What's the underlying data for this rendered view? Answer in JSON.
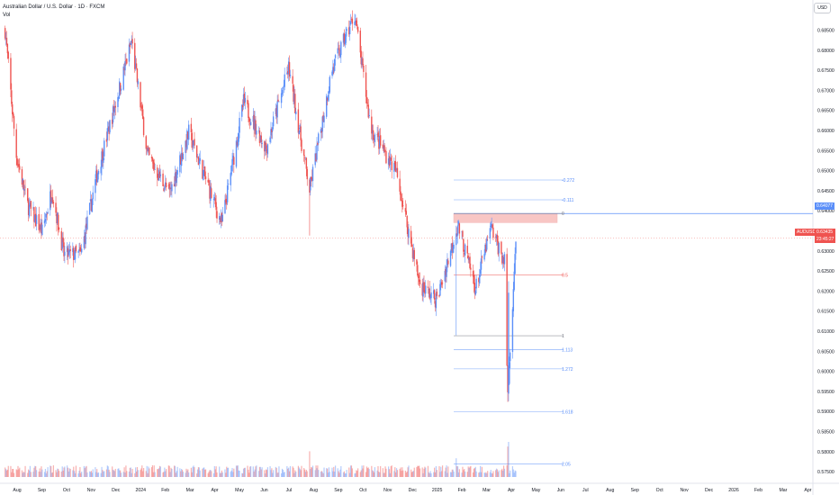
{
  "header": {
    "symbol_title": "Australian Dollar / U.S. Dollar · 1D · FXCM",
    "volume_label": "Vol"
  },
  "currency_button": "USD",
  "price_axis": {
    "ticks": [
      "0.68500",
      "0.68000",
      "0.67500",
      "0.67000",
      "0.66500",
      "0.66000",
      "0.65500",
      "0.65000",
      "0.64500",
      "0.64000",
      "0.63500",
      "0.63000",
      "0.62500",
      "0.62000",
      "0.61500",
      "0.61000",
      "0.60500",
      "0.60000",
      "0.59500",
      "0.59000",
      "0.58500",
      "0.58000",
      "0.57500"
    ]
  },
  "time_axis": {
    "ticks": [
      "Aug",
      "Sep",
      "Oct",
      "Nov",
      "Dec",
      "2024",
      "Feb",
      "Mar",
      "Apr",
      "May",
      "Jun",
      "Jul",
      "Aug",
      "Sep",
      "Oct",
      "Nov",
      "Dec",
      "2025",
      "Feb",
      "Mar",
      "Apr",
      "May",
      "Jun",
      "Jul",
      "Aug",
      "Sep",
      "Oct",
      "Nov",
      "Dec",
      "2026",
      "Feb",
      "Mar",
      "Apr"
    ]
  },
  "price_labels": {
    "level_tag": "0.64077",
    "symbol_tag": "AUDUSD",
    "current_price": "0.63435",
    "countdown": "23:45:27"
  },
  "fib_levels": [
    {
      "label": "-0.272",
      "price": 0.6496,
      "color": "#5b8ff9"
    },
    {
      "label": "-0.111",
      "price": 0.6444,
      "color": "#5b8ff9"
    },
    {
      "label": "0",
      "price": 0.6408,
      "color": "#787b86"
    },
    {
      "label": "0.5",
      "price": 0.6247,
      "color": "#ef5350"
    },
    {
      "label": "1",
      "price": 0.6087,
      "color": "#787b86"
    },
    {
      "label": "1.113",
      "price": 0.605,
      "color": "#5b8ff9"
    },
    {
      "label": "1.272",
      "price": 0.6,
      "color": "#5b8ff9"
    },
    {
      "label": "1.618",
      "price": 0.5888,
      "color": "#5b8ff9"
    },
    {
      "label": "2.05",
      "price": 0.575,
      "color": "#5b8ff9"
    }
  ],
  "chart_data": {
    "type": "candlestick",
    "symbol": "AUDUSD",
    "interval": "1D",
    "ylim": [
      0.5735,
      0.6893
    ],
    "series_close_anchors": [
      [
        "2023-07-24",
        0.689
      ],
      [
        "2023-08-07",
        0.656
      ],
      [
        "2023-08-21",
        0.643
      ],
      [
        "2023-09-08",
        0.636
      ],
      [
        "2023-09-20",
        0.647
      ],
      [
        "2023-10-05",
        0.63
      ],
      [
        "2023-10-26",
        0.63
      ],
      [
        "2023-11-15",
        0.651
      ],
      [
        "2023-12-28",
        0.686
      ],
      [
        "2024-01-17",
        0.656
      ],
      [
        "2024-02-13",
        0.646
      ],
      [
        "2024-03-08",
        0.662
      ],
      [
        "2024-04-18",
        0.638
      ],
      [
        "2024-05-15",
        0.67
      ],
      [
        "2024-06-12",
        0.658
      ],
      [
        "2024-07-10",
        0.679
      ],
      [
        "2024-08-05",
        0.647
      ],
      [
        "2024-09-01",
        0.678
      ],
      [
        "2024-09-30",
        0.693
      ],
      [
        "2024-10-20",
        0.663
      ],
      [
        "2024-11-20",
        0.652
      ],
      [
        "2024-12-20",
        0.622
      ],
      [
        "2025-01-10",
        0.618
      ],
      [
        "2025-02-05",
        0.638
      ],
      [
        "2025-02-27",
        0.621
      ],
      [
        "2025-03-18",
        0.637
      ],
      [
        "2025-04-04",
        0.628
      ],
      [
        "2025-04-08",
        0.593
      ],
      [
        "2025-04-18",
        0.6343
      ]
    ],
    "notable_points": {
      "range_high": 0.6408,
      "spike_low": 0.5915,
      "current_price": 0.63435
    },
    "volume_series": true,
    "colors": {
      "up": "#5b8ff9",
      "down": "#ef5350",
      "supply_zone": "#f6b4b1"
    },
    "supply_zone_price": [
      0.6384,
      0.6408
    ]
  }
}
